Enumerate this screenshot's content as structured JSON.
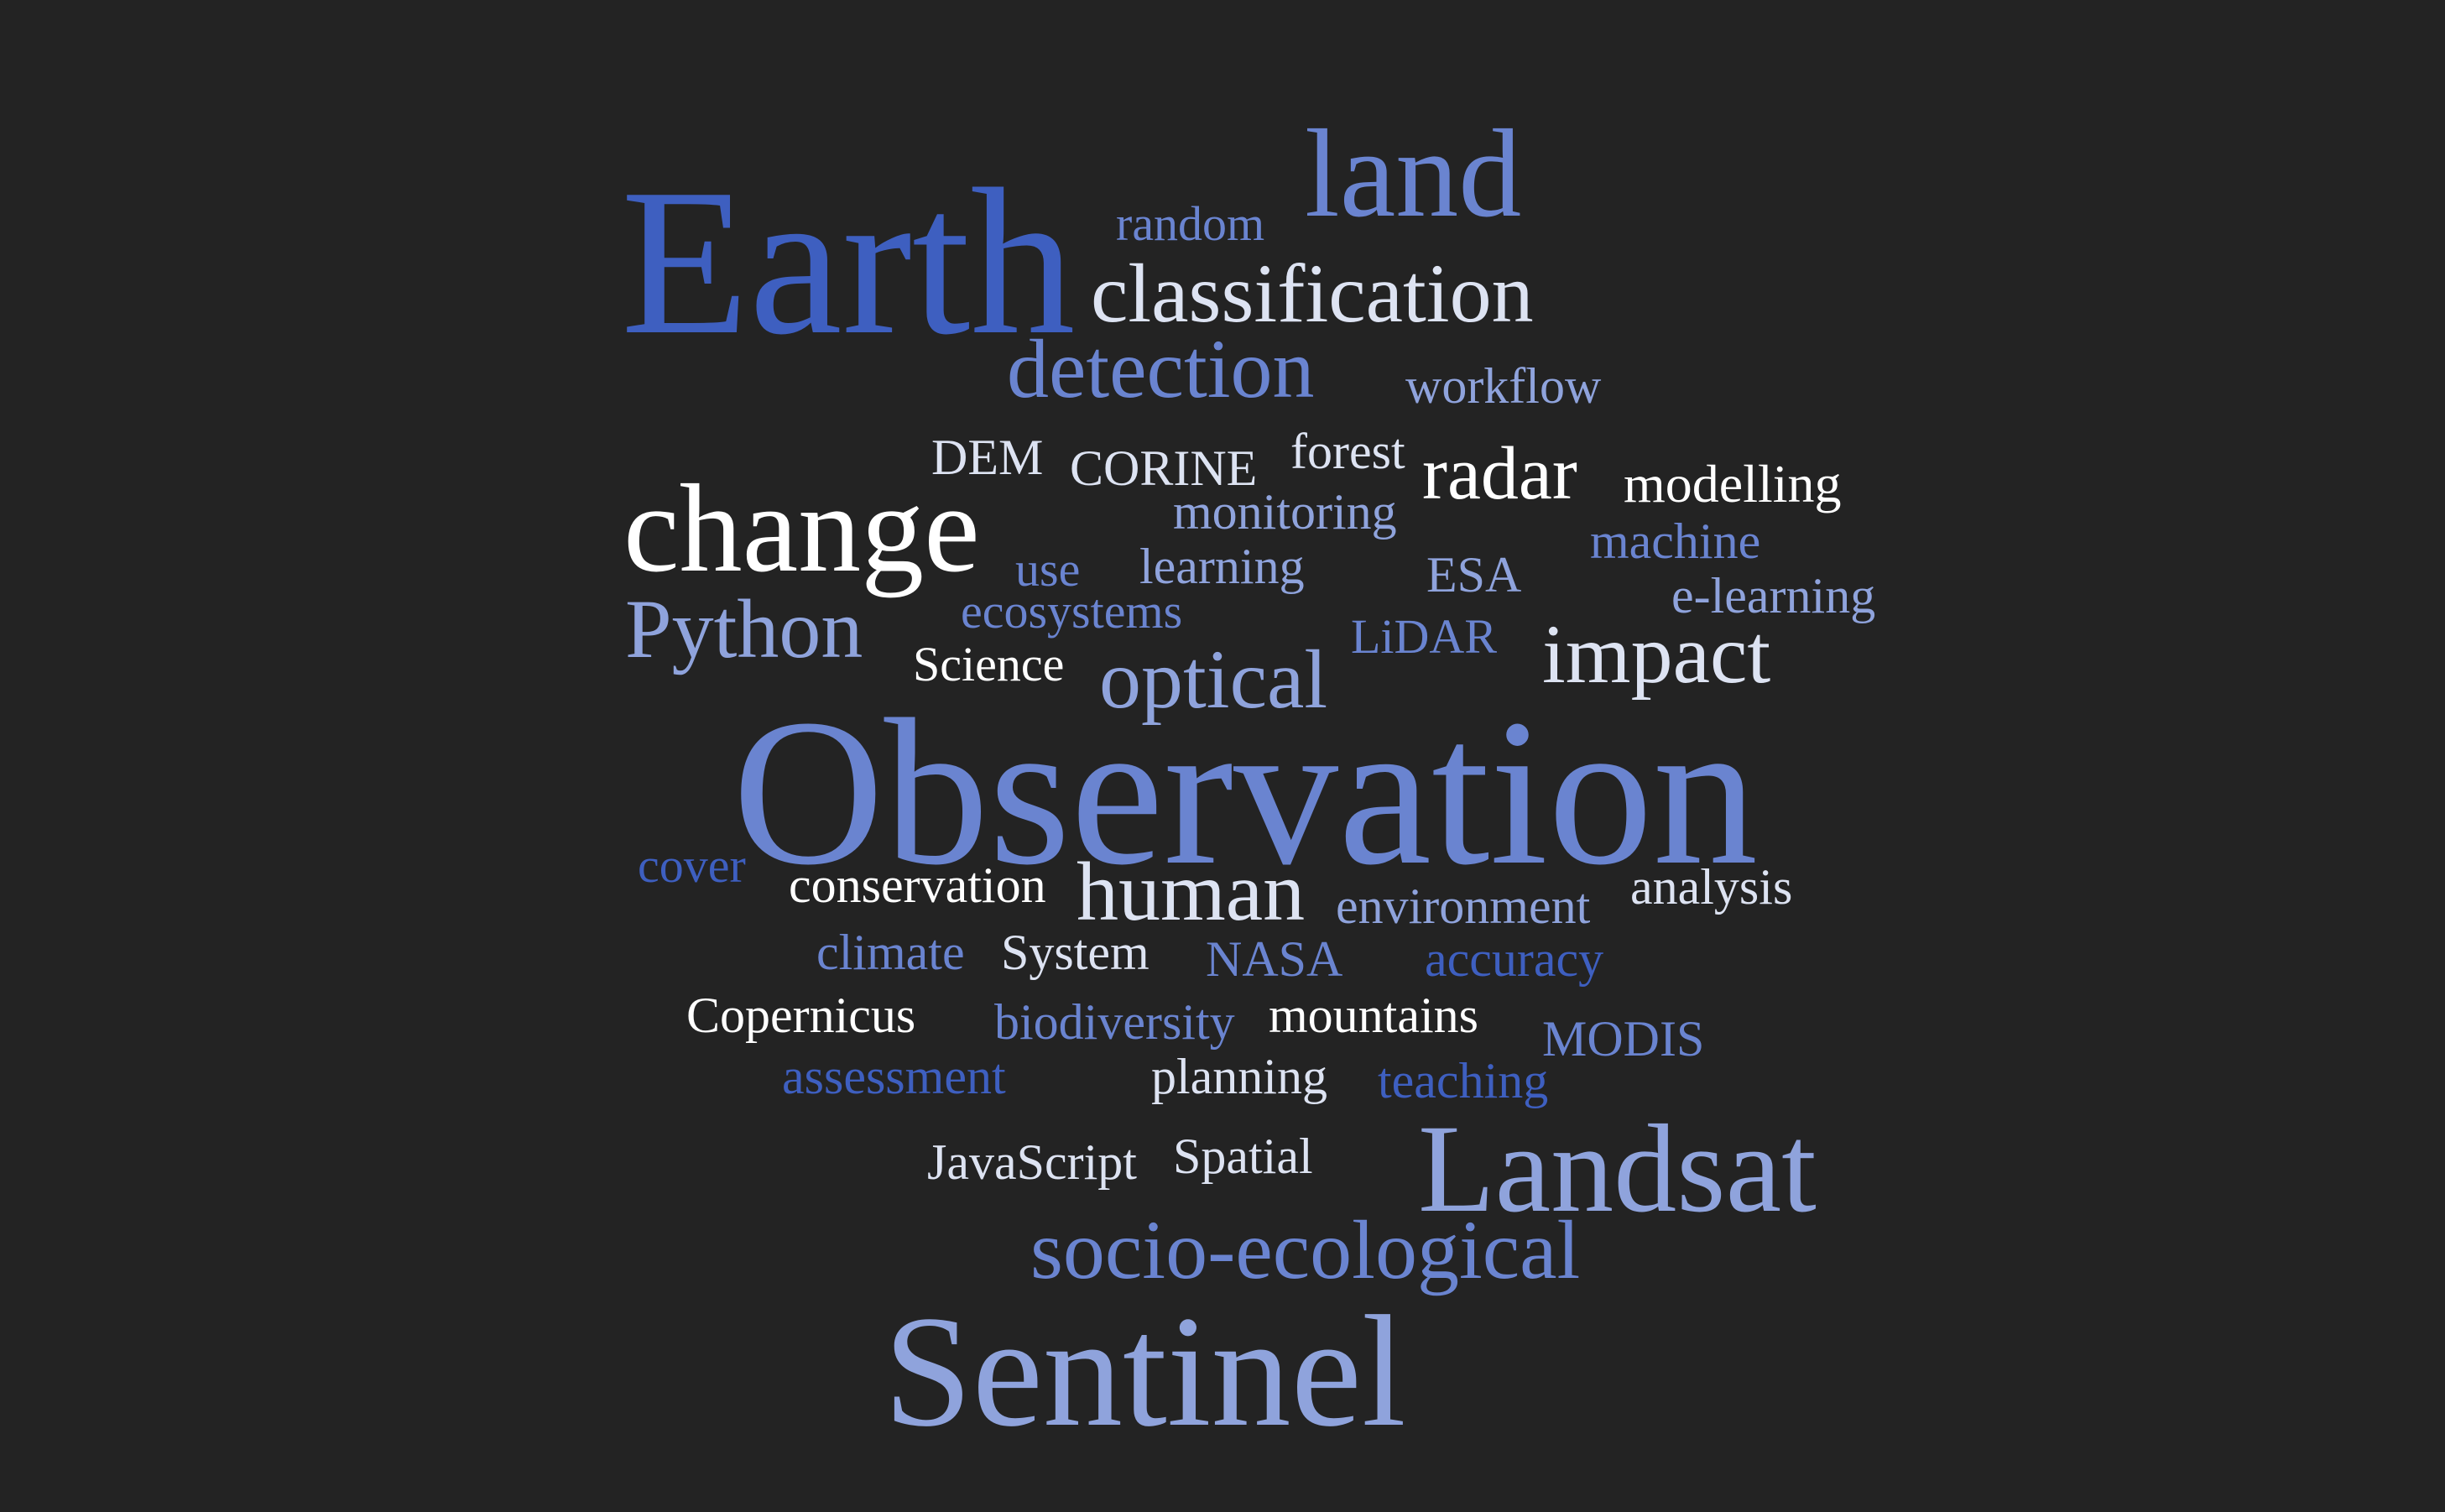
{
  "palette": {
    "background": "#232323",
    "deep_blue": "#3e5fc0",
    "mid_blue": "#6a84d0",
    "periwinkle": "#8fa3dc",
    "pale": "#dde3f2",
    "white": "#ffffff"
  },
  "words": [
    {
      "text": "Earth",
      "color": "#3e5fc0"
    },
    {
      "text": "land",
      "color": "#6a84d0"
    },
    {
      "text": "random",
      "color": "#6a84d0"
    },
    {
      "text": "classification",
      "color": "#dde3f2"
    },
    {
      "text": "detection",
      "color": "#6a84d0"
    },
    {
      "text": "workflow",
      "color": "#8fa3dc"
    },
    {
      "text": "DEM",
      "color": "#dde3f2"
    },
    {
      "text": "CORINE",
      "color": "#dde3f2"
    },
    {
      "text": "forest",
      "color": "#dde3f2"
    },
    {
      "text": "radar",
      "color": "#ffffff"
    },
    {
      "text": "modelling",
      "color": "#ffffff"
    },
    {
      "text": "change",
      "color": "#ffffff"
    },
    {
      "text": "monitoring",
      "color": "#8fa3dc"
    },
    {
      "text": "machine",
      "color": "#6a84d0"
    },
    {
      "text": "use",
      "color": "#6a84d0"
    },
    {
      "text": "learning",
      "color": "#8fa3dc"
    },
    {
      "text": "ESA",
      "color": "#8fa3dc"
    },
    {
      "text": "e-learning",
      "color": "#8fa3dc"
    },
    {
      "text": "Python",
      "color": "#8fa3dc"
    },
    {
      "text": "ecosystems",
      "color": "#6a84d0"
    },
    {
      "text": "LiDAR",
      "color": "#6a84d0"
    },
    {
      "text": "Science",
      "color": "#ffffff"
    },
    {
      "text": "optical",
      "color": "#8fa3dc"
    },
    {
      "text": "impact",
      "color": "#dde3f2"
    },
    {
      "text": "Observation",
      "color": "#6a84d0"
    },
    {
      "text": "cover",
      "color": "#3e5fc0"
    },
    {
      "text": "conservation",
      "color": "#ffffff"
    },
    {
      "text": "human",
      "color": "#dde3f2"
    },
    {
      "text": "environment",
      "color": "#8fa3dc"
    },
    {
      "text": "analysis",
      "color": "#dde3f2"
    },
    {
      "text": "climate",
      "color": "#6a84d0"
    },
    {
      "text": "System",
      "color": "#dde3f2"
    },
    {
      "text": "NASA",
      "color": "#6a84d0"
    },
    {
      "text": "accuracy",
      "color": "#3e5fc0"
    },
    {
      "text": "Copernicus",
      "color": "#ffffff"
    },
    {
      "text": "biodiversity",
      "color": "#6a84d0"
    },
    {
      "text": "mountains",
      "color": "#ffffff"
    },
    {
      "text": "MODIS",
      "color": "#6a84d0"
    },
    {
      "text": "assessment",
      "color": "#3e5fc0"
    },
    {
      "text": "planning",
      "color": "#dde3f2"
    },
    {
      "text": "teaching",
      "color": "#3e5fc0"
    },
    {
      "text": "JavaScript",
      "color": "#dde3f2"
    },
    {
      "text": "Spatial",
      "color": "#dde3f2"
    },
    {
      "text": "Landsat",
      "color": "#8fa3dc"
    },
    {
      "text": "socio-ecological",
      "color": "#6a84d0"
    },
    {
      "text": "Sentinel",
      "color": "#8fa3dc"
    }
  ]
}
